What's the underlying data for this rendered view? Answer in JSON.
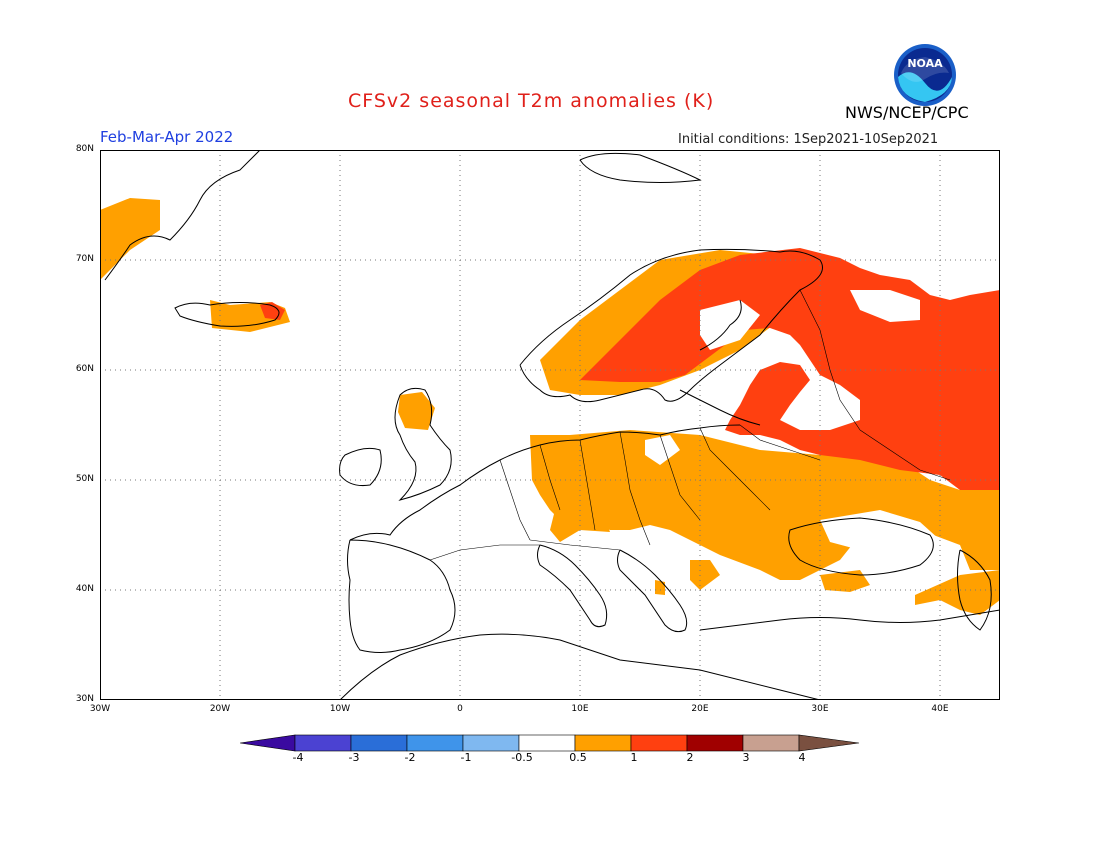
{
  "header": {
    "title": "CFSv2 seasonal T2m anomalies (K)",
    "period": "Feb-Mar-Apr 2022",
    "agency": "NWS/NCEP/CPC",
    "initial_conditions": "Initial conditions: 1Sep2021-10Sep2021",
    "logo_text": "NOAA"
  },
  "map": {
    "lat_labels": [
      "80N",
      "70N",
      "60N",
      "50N",
      "40N",
      "30N"
    ],
    "lon_labels": [
      "30W",
      "20W",
      "10W",
      "0",
      "10E",
      "20E",
      "30E",
      "40E"
    ]
  },
  "colorbar": {
    "labels": [
      "-4",
      "-3",
      "-2",
      "-1",
      "-0.5",
      "0.5",
      "1",
      "2",
      "3",
      "4"
    ],
    "colors": [
      "#3a0aa0",
      "#4b42d2",
      "#2a6ed8",
      "#3f94ea",
      "#7fb8f0",
      "#ffffff",
      "#ffa000",
      "#ff4010",
      "#a00000",
      "#c8a090",
      "#7a5040"
    ]
  },
  "legend_colors": {
    "anomaly_0_5_to_1": "#ffa000",
    "anomaly_1_to_2": "#ff4010",
    "anomaly_2_to_3": "#a00000"
  }
}
